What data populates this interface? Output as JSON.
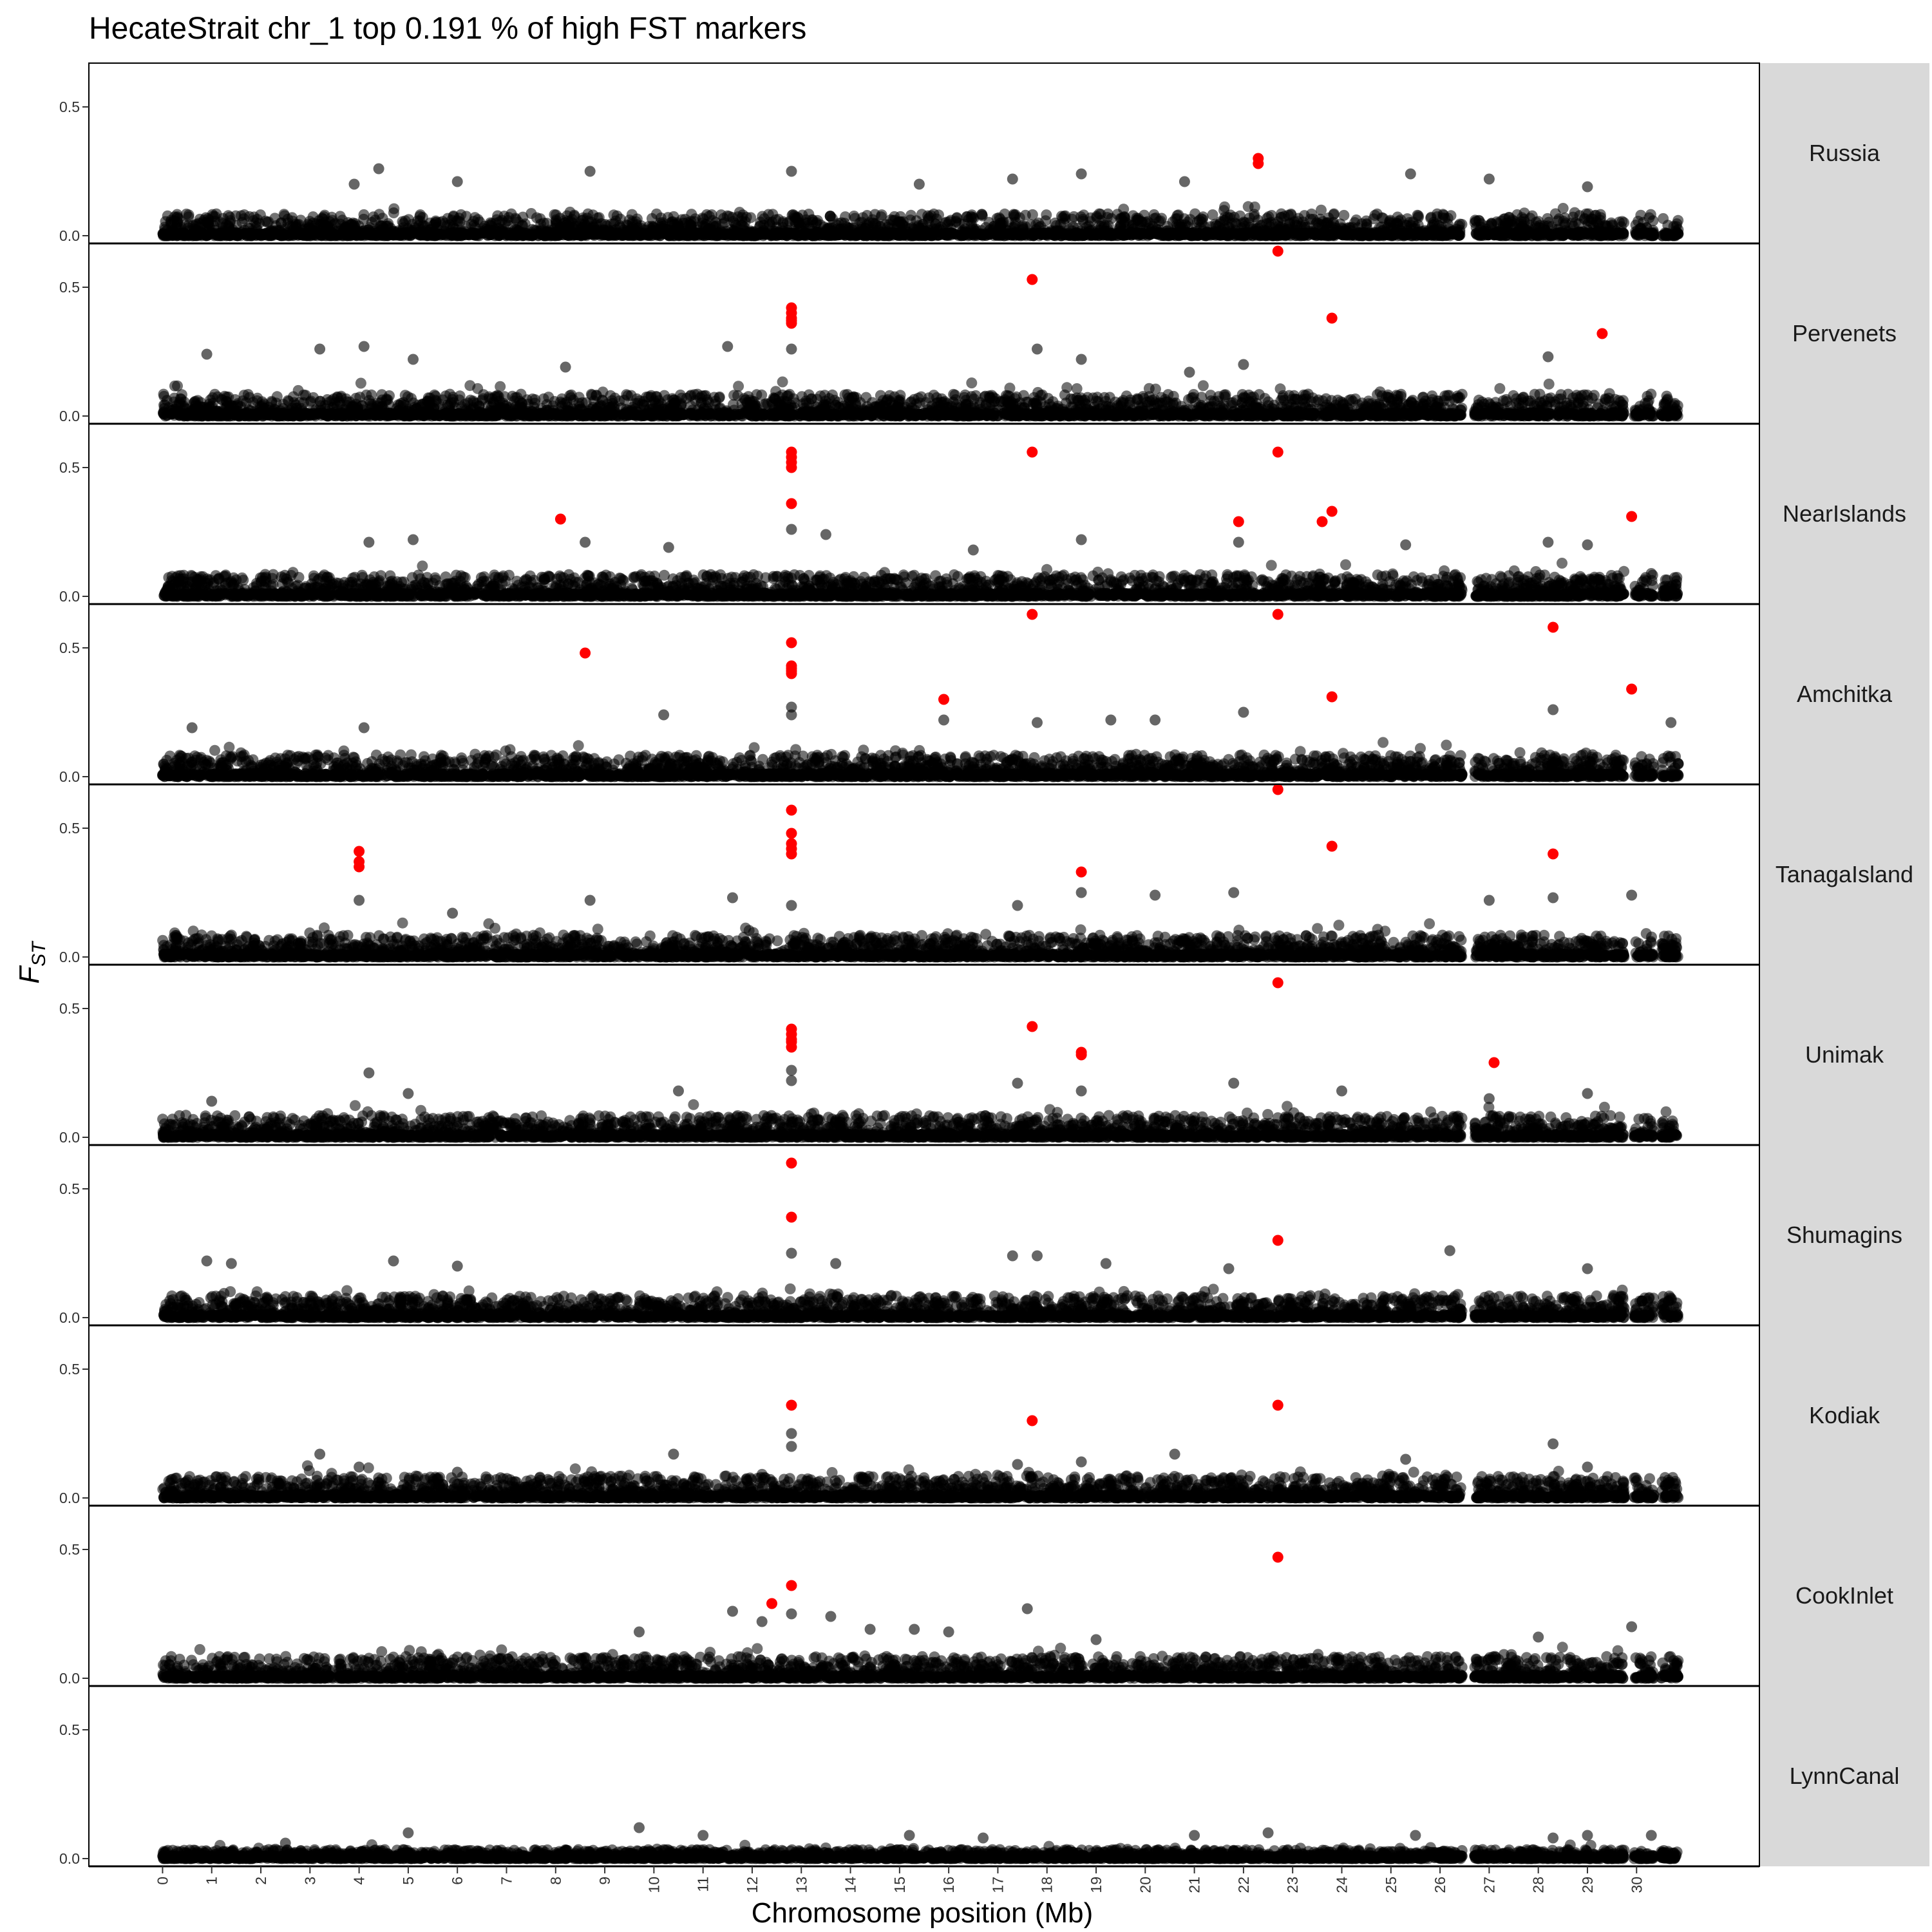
{
  "chart_data": {
    "type": "scatter",
    "title": "HecateStrait chr_1 top 0.191 % of high FST markers",
    "xlabel": "Chromosome position (Mb)",
    "ylabel_main": "F",
    "ylabel_sub": "ST",
    "xlim": [
      -1.5,
      32.5
    ],
    "ylim": [
      -0.03,
      0.67
    ],
    "x_ticks": [
      0,
      1,
      2,
      3,
      4,
      5,
      6,
      7,
      8,
      9,
      10,
      11,
      12,
      13,
      14,
      15,
      16,
      17,
      18,
      19,
      20,
      21,
      22,
      23,
      24,
      25,
      26,
      27,
      28,
      29,
      30
    ],
    "y_ticks": [
      0.0,
      0.5
    ],
    "y_tick_labels": [
      "0.0",
      "0.5"
    ],
    "grid": false,
    "colors": {
      "background_points": "#000000",
      "highlight": "#ff0000",
      "strip": "#d9d9d9"
    },
    "panels": [
      {
        "name": "Russia",
        "highlights": [
          [
            22.3,
            0.3
          ],
          [
            22.3,
            0.28
          ]
        ],
        "peaks": [
          [
            20.8,
            0.21
          ],
          [
            12.8,
            0.25
          ],
          [
            4.4,
            0.26
          ],
          [
            8.7,
            0.25
          ],
          [
            25.4,
            0.24
          ],
          [
            18.7,
            0.24
          ],
          [
            17.3,
            0.22
          ],
          [
            27.0,
            0.22
          ],
          [
            3.9,
            0.2
          ],
          [
            6.0,
            0.21
          ],
          [
            15.4,
            0.2
          ],
          [
            29.0,
            0.19
          ]
        ]
      },
      {
        "name": "Pervenets",
        "highlights": [
          [
            22.7,
            0.64
          ],
          [
            17.7,
            0.53
          ],
          [
            12.8,
            0.42
          ],
          [
            12.8,
            0.4
          ],
          [
            12.8,
            0.38
          ],
          [
            12.8,
            0.37
          ],
          [
            12.8,
            0.36
          ],
          [
            23.8,
            0.38
          ],
          [
            29.3,
            0.32
          ]
        ],
        "peaks": [
          [
            4.1,
            0.27
          ],
          [
            3.2,
            0.26
          ],
          [
            11.5,
            0.27
          ],
          [
            17.8,
            0.26
          ],
          [
            12.8,
            0.26
          ],
          [
            0.9,
            0.24
          ],
          [
            28.2,
            0.23
          ],
          [
            18.7,
            0.22
          ],
          [
            5.1,
            0.22
          ],
          [
            8.2,
            0.19
          ],
          [
            22.0,
            0.2
          ],
          [
            20.9,
            0.17
          ]
        ]
      },
      {
        "name": "NearIslands",
        "highlights": [
          [
            12.8,
            0.56
          ],
          [
            12.8,
            0.54
          ],
          [
            12.8,
            0.52
          ],
          [
            12.8,
            0.5
          ],
          [
            17.7,
            0.56
          ],
          [
            22.7,
            0.56
          ],
          [
            12.8,
            0.36
          ],
          [
            23.8,
            0.33
          ],
          [
            23.6,
            0.29
          ],
          [
            21.9,
            0.29
          ],
          [
            8.1,
            0.3
          ],
          [
            29.9,
            0.31
          ]
        ],
        "peaks": [
          [
            12.8,
            0.26
          ],
          [
            13.5,
            0.24
          ],
          [
            18.7,
            0.22
          ],
          [
            5.1,
            0.22
          ],
          [
            4.2,
            0.21
          ],
          [
            8.6,
            0.21
          ],
          [
            28.2,
            0.21
          ],
          [
            21.9,
            0.21
          ],
          [
            29.0,
            0.2
          ],
          [
            25.3,
            0.2
          ],
          [
            10.3,
            0.19
          ],
          [
            16.5,
            0.18
          ]
        ]
      },
      {
        "name": "Amchitka",
        "highlights": [
          [
            17.7,
            0.63
          ],
          [
            22.7,
            0.63
          ],
          [
            28.3,
            0.58
          ],
          [
            8.6,
            0.48
          ],
          [
            12.8,
            0.52
          ],
          [
            12.8,
            0.43
          ],
          [
            12.8,
            0.42
          ],
          [
            12.8,
            0.41
          ],
          [
            12.8,
            0.4
          ],
          [
            23.8,
            0.31
          ],
          [
            15.9,
            0.3
          ],
          [
            29.9,
            0.34
          ]
        ],
        "peaks": [
          [
            12.8,
            0.27
          ],
          [
            28.3,
            0.26
          ],
          [
            12.8,
            0.24
          ],
          [
            22.0,
            0.25
          ],
          [
            10.2,
            0.24
          ],
          [
            30.7,
            0.21
          ],
          [
            15.9,
            0.22
          ],
          [
            17.8,
            0.21
          ],
          [
            19.3,
            0.22
          ],
          [
            20.2,
            0.22
          ],
          [
            0.6,
            0.19
          ],
          [
            4.1,
            0.19
          ]
        ]
      },
      {
        "name": "TanagaIsland",
        "highlights": [
          [
            22.7,
            0.65
          ],
          [
            12.8,
            0.57
          ],
          [
            12.8,
            0.48
          ],
          [
            12.8,
            0.44
          ],
          [
            12.8,
            0.42
          ],
          [
            12.8,
            0.4
          ],
          [
            4.0,
            0.41
          ],
          [
            4.0,
            0.37
          ],
          [
            4.0,
            0.35
          ],
          [
            23.8,
            0.43
          ],
          [
            28.3,
            0.4
          ],
          [
            18.7,
            0.33
          ]
        ],
        "peaks": [
          [
            18.7,
            0.25
          ],
          [
            21.8,
            0.25
          ],
          [
            20.2,
            0.24
          ],
          [
            11.6,
            0.23
          ],
          [
            4.0,
            0.22
          ],
          [
            8.7,
            0.22
          ],
          [
            28.3,
            0.23
          ],
          [
            29.9,
            0.24
          ],
          [
            27.0,
            0.22
          ],
          [
            17.4,
            0.2
          ],
          [
            12.8,
            0.2
          ],
          [
            5.9,
            0.17
          ]
        ]
      },
      {
        "name": "Unimak",
        "highlights": [
          [
            22.7,
            0.6
          ],
          [
            17.7,
            0.43
          ],
          [
            12.8,
            0.42
          ],
          [
            12.8,
            0.4
          ],
          [
            12.8,
            0.38
          ],
          [
            12.8,
            0.37
          ],
          [
            12.8,
            0.35
          ],
          [
            18.7,
            0.33
          ],
          [
            18.7,
            0.32
          ],
          [
            27.1,
            0.29
          ]
        ],
        "peaks": [
          [
            12.8,
            0.26
          ],
          [
            4.2,
            0.25
          ],
          [
            21.8,
            0.21
          ],
          [
            12.8,
            0.22
          ],
          [
            17.4,
            0.21
          ],
          [
            18.7,
            0.18
          ],
          [
            24.0,
            0.18
          ],
          [
            10.5,
            0.18
          ],
          [
            29.0,
            0.17
          ],
          [
            5.0,
            0.17
          ],
          [
            27.0,
            0.15
          ],
          [
            1.0,
            0.14
          ]
        ]
      },
      {
        "name": "Shumagins",
        "highlights": [
          [
            12.8,
            0.6
          ],
          [
            12.8,
            0.39
          ],
          [
            22.7,
            0.3
          ]
        ],
        "peaks": [
          [
            26.2,
            0.26
          ],
          [
            12.8,
            0.25
          ],
          [
            17.3,
            0.24
          ],
          [
            17.8,
            0.24
          ],
          [
            0.9,
            0.22
          ],
          [
            4.7,
            0.22
          ],
          [
            1.4,
            0.21
          ],
          [
            19.2,
            0.21
          ],
          [
            13.7,
            0.21
          ],
          [
            6.0,
            0.2
          ],
          [
            21.7,
            0.19
          ],
          [
            29.0,
            0.19
          ]
        ]
      },
      {
        "name": "Kodiak",
        "highlights": [
          [
            12.8,
            0.36
          ],
          [
            22.7,
            0.36
          ],
          [
            17.7,
            0.3
          ]
        ],
        "peaks": [
          [
            12.8,
            0.25
          ],
          [
            28.3,
            0.21
          ],
          [
            12.8,
            0.2
          ],
          [
            10.4,
            0.17
          ],
          [
            20.6,
            0.17
          ],
          [
            3.2,
            0.17
          ],
          [
            25.3,
            0.15
          ],
          [
            18.7,
            0.14
          ],
          [
            17.4,
            0.13
          ],
          [
            29.0,
            0.12
          ],
          [
            4.0,
            0.12
          ],
          [
            6.0,
            0.1
          ]
        ]
      },
      {
        "name": "CookInlet",
        "highlights": [
          [
            22.7,
            0.47
          ],
          [
            12.8,
            0.36
          ],
          [
            12.4,
            0.29
          ]
        ],
        "peaks": [
          [
            17.6,
            0.27
          ],
          [
            11.6,
            0.26
          ],
          [
            12.8,
            0.25
          ],
          [
            13.6,
            0.24
          ],
          [
            12.2,
            0.22
          ],
          [
            14.4,
            0.19
          ],
          [
            15.3,
            0.19
          ],
          [
            29.9,
            0.2
          ],
          [
            9.7,
            0.18
          ],
          [
            16.0,
            0.18
          ],
          [
            28.0,
            0.16
          ],
          [
            19.0,
            0.15
          ]
        ]
      },
      {
        "name": "LynnCanal",
        "highlights": [],
        "peaks": [
          [
            9.7,
            0.12
          ],
          [
            5.0,
            0.1
          ],
          [
            11.0,
            0.09
          ],
          [
            22.5,
            0.1
          ],
          [
            15.2,
            0.09
          ],
          [
            25.5,
            0.09
          ],
          [
            30.3,
            0.09
          ],
          [
            16.7,
            0.08
          ],
          [
            21.0,
            0.09
          ],
          [
            28.3,
            0.08
          ],
          [
            29.0,
            0.09
          ],
          [
            2.5,
            0.06
          ]
        ]
      }
    ]
  }
}
